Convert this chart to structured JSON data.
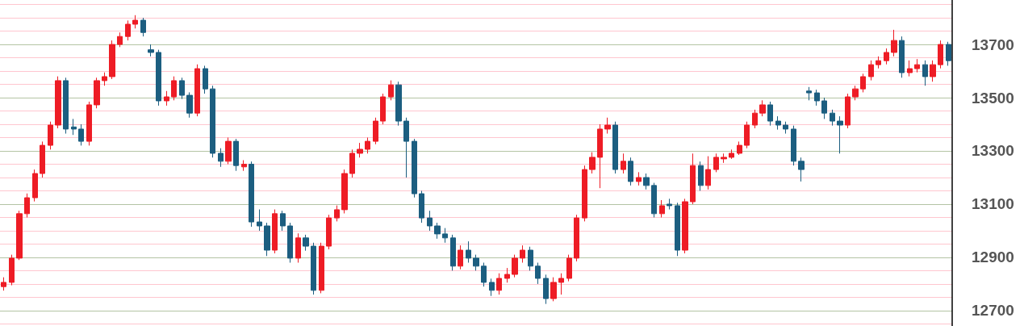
{
  "chart_data": {
    "type": "candlestick",
    "categories": [
      null,
      null,
      null,
      null,
      null,
      null,
      null,
      null,
      null,
      null,
      null,
      null,
      null,
      null,
      null,
      null,
      null,
      null,
      null,
      null,
      null,
      null,
      null,
      null,
      null,
      null,
      null,
      null,
      null,
      null,
      null,
      null,
      null,
      null,
      null,
      null,
      null,
      null,
      null,
      null,
      null,
      null,
      null,
      null,
      null,
      null,
      null,
      null,
      null,
      null,
      null,
      null,
      null,
      null,
      null,
      null,
      null,
      null,
      null,
      null,
      null,
      null,
      null,
      null,
      null,
      null,
      null,
      null,
      null,
      null,
      null,
      null,
      null,
      null,
      null,
      null,
      null,
      null,
      null,
      null,
      null,
      null,
      null,
      null,
      null,
      null,
      null,
      null,
      null,
      null,
      null,
      null,
      null,
      null,
      null,
      null,
      null,
      null,
      null,
      null,
      null,
      null,
      null,
      null,
      null,
      null,
      null,
      null,
      null,
      null,
      null,
      null,
      null,
      null,
      null,
      null,
      null,
      null,
      null,
      null,
      null,
      null,
      null
    ],
    "ohlc": [
      [
        12790,
        12825,
        12775,
        12806
      ],
      [
        12806,
        12910,
        12795,
        12897
      ],
      [
        12897,
        13075,
        12890,
        13064
      ],
      [
        13064,
        13140,
        13050,
        13124
      ],
      [
        13124,
        13230,
        13110,
        13215
      ],
      [
        13215,
        13335,
        13200,
        13321
      ],
      [
        13321,
        13410,
        13305,
        13397
      ],
      [
        13397,
        13580,
        13385,
        13564
      ],
      [
        13564,
        13575,
        13365,
        13382
      ],
      [
        13390,
        13420,
        13360,
        13382
      ],
      [
        13382,
        13400,
        13320,
        13336
      ],
      [
        13336,
        13485,
        13320,
        13473
      ],
      [
        13473,
        13575,
        13460,
        13564
      ],
      [
        13564,
        13595,
        13545,
        13579
      ],
      [
        13579,
        13715,
        13570,
        13700
      ],
      [
        13700,
        13745,
        13690,
        13730
      ],
      [
        13730,
        13790,
        13715,
        13776
      ],
      [
        13776,
        13810,
        13760,
        13791
      ],
      [
        13791,
        13800,
        13730,
        13745
      ],
      [
        13680,
        13700,
        13655,
        13670
      ],
      [
        13670,
        13680,
        13470,
        13488
      ],
      [
        13488,
        13525,
        13470,
        13503
      ],
      [
        13503,
        13580,
        13490,
        13564
      ],
      [
        13564,
        13575,
        13495,
        13509
      ],
      [
        13509,
        13520,
        13425,
        13442
      ],
      [
        13442,
        13625,
        13430,
        13609
      ],
      [
        13609,
        13620,
        13515,
        13533
      ],
      [
        13533,
        13545,
        13275,
        13291
      ],
      [
        13291,
        13310,
        13240,
        13261
      ],
      [
        13261,
        13350,
        13250,
        13336
      ],
      [
        13336,
        13345,
        13225,
        13245
      ],
      [
        13240,
        13265,
        13225,
        13250
      ],
      [
        13250,
        13260,
        13015,
        13033
      ],
      [
        13033,
        13080,
        13000,
        13018
      ],
      [
        13018,
        13030,
        12905,
        12927
      ],
      [
        12927,
        13080,
        12915,
        13064
      ],
      [
        13064,
        13075,
        13000,
        13018
      ],
      [
        13018,
        13030,
        12880,
        12897
      ],
      [
        12897,
        12990,
        12880,
        12973
      ],
      [
        12973,
        12985,
        12925,
        12942
      ],
      [
        12942,
        12955,
        12760,
        12776
      ],
      [
        12776,
        12955,
        12765,
        12942
      ],
      [
        12942,
        13060,
        12930,
        13048
      ],
      [
        13048,
        13095,
        13035,
        13079
      ],
      [
        13079,
        13230,
        13065,
        13215
      ],
      [
        13215,
        13305,
        13200,
        13291
      ],
      [
        13291,
        13330,
        13275,
        13306
      ],
      [
        13306,
        13350,
        13290,
        13336
      ],
      [
        13336,
        13425,
        13325,
        13412
      ],
      [
        13412,
        13515,
        13400,
        13503
      ],
      [
        13503,
        13565,
        13490,
        13548
      ],
      [
        13548,
        13560,
        13395,
        13412
      ],
      [
        13412,
        13425,
        13200,
        13336
      ],
      [
        13336,
        13345,
        13125,
        13139
      ],
      [
        13139,
        13150,
        13030,
        13048
      ],
      [
        13048,
        13075,
        13000,
        13018
      ],
      [
        13018,
        13030,
        12970,
        12988
      ],
      [
        12988,
        13010,
        12955,
        12973
      ],
      [
        12973,
        12985,
        12850,
        12867
      ],
      [
        12867,
        12945,
        12855,
        12927
      ],
      [
        12927,
        12960,
        12880,
        12897
      ],
      [
        12897,
        12910,
        12850,
        12867
      ],
      [
        12867,
        12880,
        12790,
        12806
      ],
      [
        12806,
        12820,
        12755,
        12776
      ],
      [
        12776,
        12840,
        12760,
        12821
      ],
      [
        12821,
        12860,
        12805,
        12836
      ],
      [
        12836,
        12910,
        12825,
        12897
      ],
      [
        12897,
        12945,
        12880,
        12927
      ],
      [
        12927,
        12940,
        12850,
        12867
      ],
      [
        12867,
        12880,
        12800,
        12821
      ],
      [
        12821,
        12835,
        12725,
        12745
      ],
      [
        12745,
        12825,
        12735,
        12806
      ],
      [
        12806,
        12840,
        12760,
        12821
      ],
      [
        12821,
        12910,
        12810,
        12897
      ],
      [
        12897,
        13060,
        12885,
        13048
      ],
      [
        13048,
        13245,
        13035,
        13230
      ],
      [
        13230,
        13295,
        13215,
        13276
      ],
      [
        13276,
        13400,
        13160,
        13382
      ],
      [
        13382,
        13425,
        13365,
        13397
      ],
      [
        13397,
        13410,
        13215,
        13230
      ],
      [
        13230,
        13290,
        13215,
        13261
      ],
      [
        13261,
        13275,
        13170,
        13185
      ],
      [
        13185,
        13220,
        13170,
        13200
      ],
      [
        13200,
        13215,
        13155,
        13170
      ],
      [
        13170,
        13180,
        13050,
        13064
      ],
      [
        13064,
        13115,
        13050,
        13094
      ],
      [
        13100,
        13120,
        13080,
        13094
      ],
      [
        13094,
        13105,
        12905,
        12927
      ],
      [
        12927,
        13120,
        12915,
        13109
      ],
      [
        13109,
        13290,
        13100,
        13245
      ],
      [
        13245,
        13260,
        13150,
        13170
      ],
      [
        13170,
        13280,
        13155,
        13230
      ],
      [
        13230,
        13290,
        13220,
        13276
      ],
      [
        13270,
        13290,
        13255,
        13276
      ],
      [
        13276,
        13305,
        13270,
        13291
      ],
      [
        13291,
        13335,
        13285,
        13321
      ],
      [
        13321,
        13410,
        13310,
        13397
      ],
      [
        13397,
        13455,
        13385,
        13442
      ],
      [
        13442,
        13490,
        13430,
        13473
      ],
      [
        13473,
        13485,
        13395,
        13412
      ],
      [
        13412,
        13430,
        13380,
        13397
      ],
      [
        13397,
        13410,
        13365,
        13382
      ],
      [
        13382,
        13395,
        13245,
        13261
      ],
      [
        13261,
        13275,
        13185,
        13230
      ],
      [
        13525,
        13540,
        13490,
        13518
      ],
      [
        13518,
        13530,
        13470,
        13488
      ],
      [
        13488,
        13500,
        13420,
        13442
      ],
      [
        13442,
        13455,
        13395,
        13412
      ],
      [
        13412,
        13430,
        13290,
        13397
      ],
      [
        13397,
        13515,
        13385,
        13503
      ],
      [
        13503,
        13545,
        13490,
        13533
      ],
      [
        13533,
        13590,
        13520,
        13579
      ],
      [
        13579,
        13640,
        13565,
        13624
      ],
      [
        13624,
        13655,
        13610,
        13639
      ],
      [
        13639,
        13685,
        13625,
        13670
      ],
      [
        13670,
        13755,
        13655,
        13715
      ],
      [
        13715,
        13730,
        13575,
        13594
      ],
      [
        13594,
        13640,
        13580,
        13609
      ],
      [
        13609,
        13645,
        13595,
        13624
      ],
      [
        13624,
        13640,
        13545,
        13579
      ],
      [
        13579,
        13640,
        13560,
        13624
      ],
      [
        13624,
        13715,
        13610,
        13700
      ],
      [
        13700,
        13710,
        13620,
        13639
      ]
    ],
    "colors": [
      "#ee1c25",
      "#ee1c25",
      "#ee1c25",
      "#ee1c25",
      "#ee1c25",
      "#ee1c25",
      "#ee1c25",
      "#ee1c25",
      "#1c5e80",
      "#1c5e80",
      "#1c5e80",
      "#ee1c25",
      "#ee1c25",
      "#ee1c25",
      "#ee1c25",
      "#ee1c25",
      "#ee1c25",
      "#ee1c25",
      "#1c5e80",
      "#1c5e80",
      "#1c5e80",
      "#ee1c25",
      "#ee1c25",
      "#1c5e80",
      "#1c5e80",
      "#ee1c25",
      "#1c5e80",
      "#1c5e80",
      "#1c5e80",
      "#ee1c25",
      "#1c5e80",
      "#ee1c25",
      "#1c5e80",
      "#1c5e80",
      "#1c5e80",
      "#ee1c25",
      "#1c5e80",
      "#1c5e80",
      "#ee1c25",
      "#1c5e80",
      "#1c5e80",
      "#ee1c25",
      "#ee1c25",
      "#ee1c25",
      "#ee1c25",
      "#ee1c25",
      "#ee1c25",
      "#ee1c25",
      "#ee1c25",
      "#ee1c25",
      "#ee1c25",
      "#1c5e80",
      "#1c5e80",
      "#1c5e80",
      "#1c5e80",
      "#1c5e80",
      "#1c5e80",
      "#1c5e80",
      "#1c5e80",
      "#ee1c25",
      "#1c5e80",
      "#1c5e80",
      "#1c5e80",
      "#1c5e80",
      "#ee1c25",
      "#ee1c25",
      "#ee1c25",
      "#ee1c25",
      "#1c5e80",
      "#1c5e80",
      "#1c5e80",
      "#ee1c25",
      "#ee1c25",
      "#ee1c25",
      "#ee1c25",
      "#ee1c25",
      "#ee1c25",
      "#ee1c25",
      "#ee1c25",
      "#1c5e80",
      "#ee1c25",
      "#1c5e80",
      "#ee1c25",
      "#1c5e80",
      "#1c5e80",
      "#ee1c25",
      "#1c5e80",
      "#1c5e80",
      "#ee1c25",
      "#ee1c25",
      "#1c5e80",
      "#ee1c25",
      "#ee1c25",
      "#ee1c25",
      "#ee1c25",
      "#ee1c25",
      "#ee1c25",
      "#ee1c25",
      "#ee1c25",
      "#1c5e80",
      "#1c5e80",
      "#1c5e80",
      "#1c5e80",
      "#1c5e80",
      "#1c5e80",
      "#1c5e80",
      "#1c5e80",
      "#1c5e80",
      "#1c5e80",
      "#ee1c25",
      "#ee1c25",
      "#ee1c25",
      "#ee1c25",
      "#ee1c25",
      "#ee1c25",
      "#ee1c25",
      "#1c5e80",
      "#ee1c25",
      "#ee1c25",
      "#1c5e80",
      "#ee1c25",
      "#ee1c25",
      "#1c5e80"
    ],
    "ylim": [
      12642,
      13867
    ],
    "yticks": [
      {
        "value": 12650,
        "label": null
      },
      12700,
      {
        "value": 12750,
        "label": null
      },
      {
        "value": 12800,
        "label": null
      },
      {
        "value": 12850,
        "label": null
      },
      12900,
      {
        "value": 12950,
        "label": null
      },
      {
        "value": 13000,
        "label": null
      },
      {
        "value": 13050,
        "label": null
      },
      13100,
      {
        "value": 13150,
        "label": null
      },
      {
        "value": 13200,
        "label": null
      },
      {
        "value": 13250,
        "label": null
      },
      13300,
      {
        "value": 13350,
        "label": null
      },
      {
        "value": 13400,
        "label": null
      },
      {
        "value": 13450,
        "label": null
      },
      13500,
      {
        "value": 13550,
        "label": null
      },
      {
        "value": 13600,
        "label": null
      },
      {
        "value": 13650,
        "label": null
      },
      13700,
      {
        "value": 13750,
        "label": null
      },
      {
        "value": 13800,
        "label": null
      },
      {
        "value": 13850,
        "label": null
      }
    ],
    "tick_labels": "y",
    "grid": "y"
  }
}
